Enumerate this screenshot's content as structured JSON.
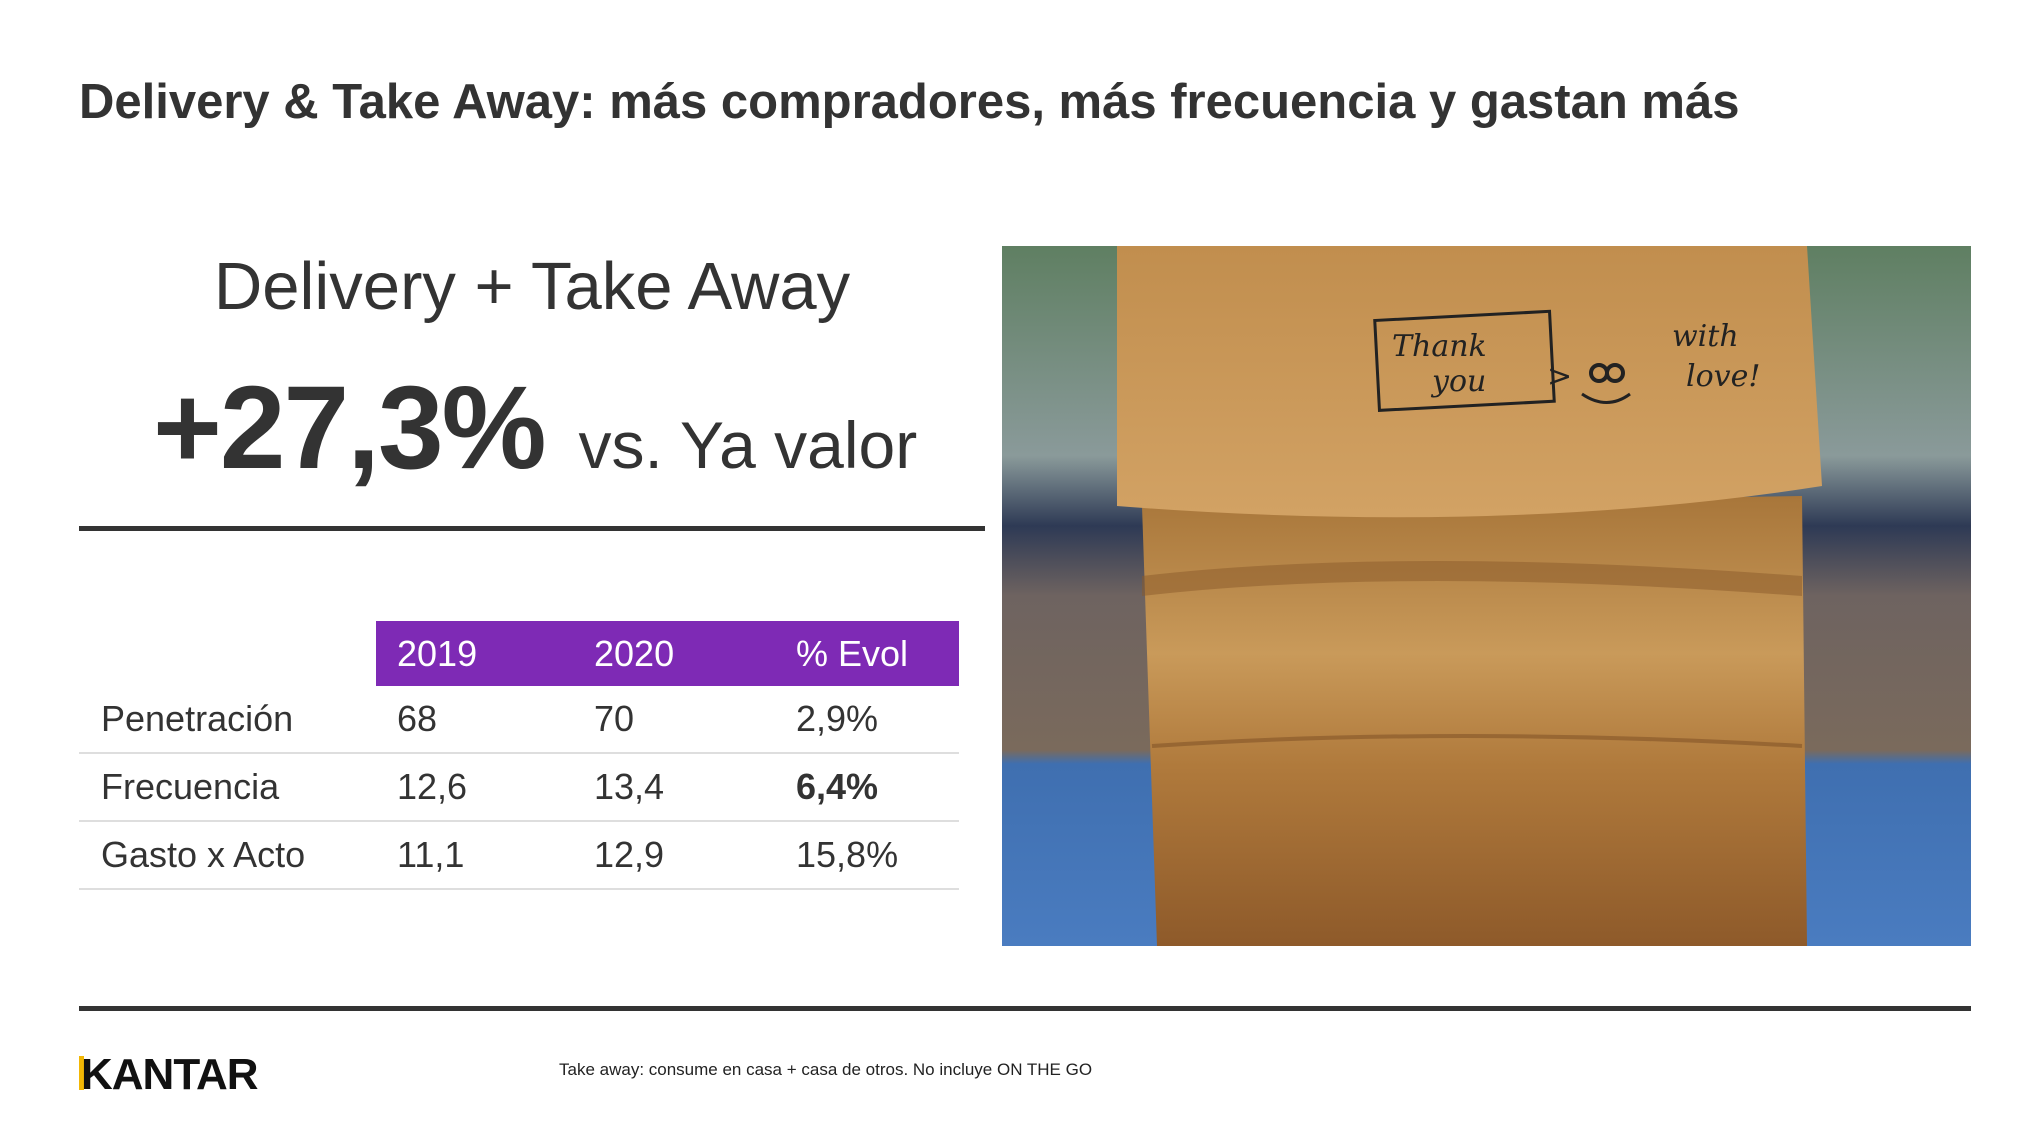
{
  "slide": {
    "title": "Delivery & Take Away: más compradores, más frecuencia y gastan más",
    "subtitle": "Delivery + Take Away",
    "kpi_value": "+27,3%",
    "kpi_label": "vs. Ya valor"
  },
  "table": {
    "headers": [
      "",
      "2019",
      "2020",
      "% Evol"
    ],
    "header_color": "#7e2ab5",
    "rows": [
      {
        "label": "Penetración",
        "v2019": "68",
        "v2020": "70",
        "evol": "2,9%"
      },
      {
        "label": "Frecuencia",
        "v2019": "12,6",
        "v2020": "13,4",
        "evol": "6,4%"
      },
      {
        "label": "Gasto x Acto",
        "v2019": "11,1",
        "v2020": "12,9",
        "evol": "15,8%"
      }
    ]
  },
  "photo": {
    "handwriting": [
      "Thank",
      "you",
      "with",
      "love!"
    ]
  },
  "footer": {
    "logo": "KANTAR",
    "logo_accent": "#f2b705",
    "footnote": "Take away: consume en casa + casa de otros. No incluye ON THE GO"
  }
}
